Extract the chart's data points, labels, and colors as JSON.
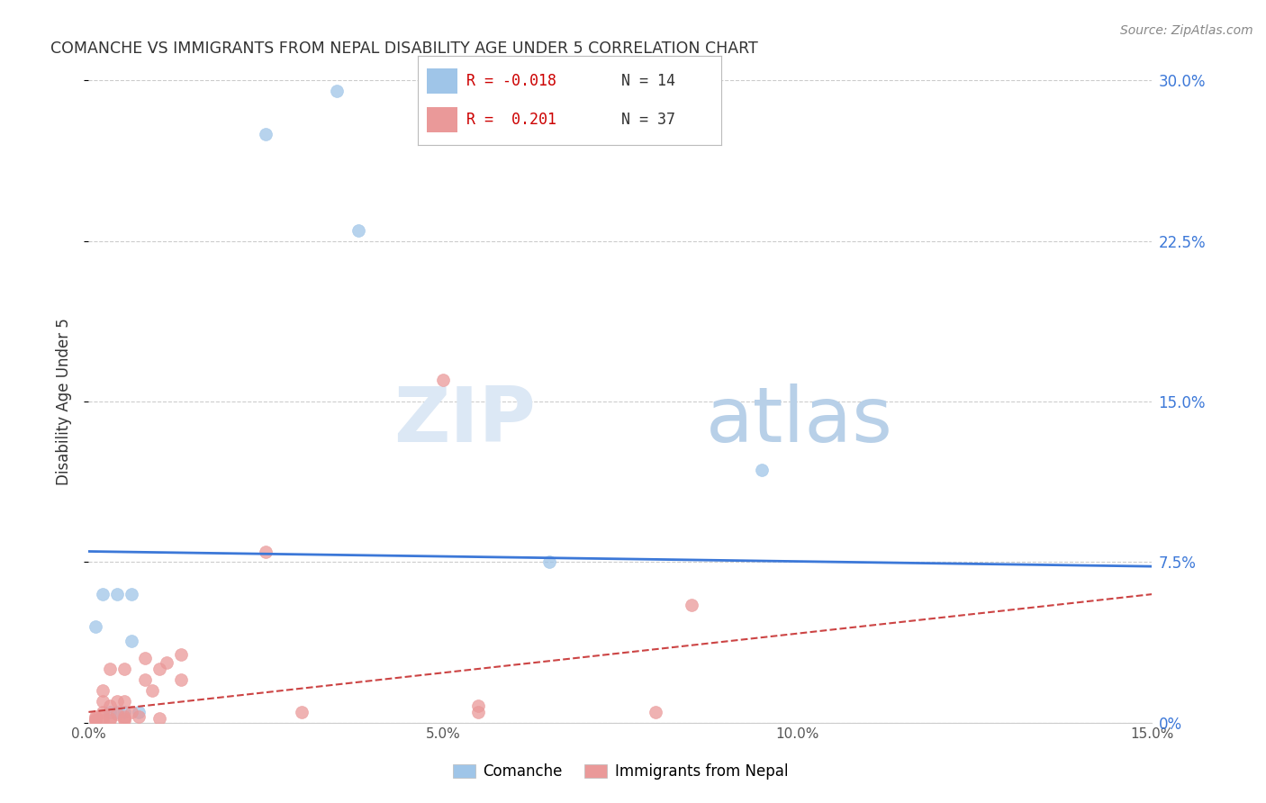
{
  "title": "COMANCHE VS IMMIGRANTS FROM NEPAL DISABILITY AGE UNDER 5 CORRELATION CHART",
  "source": "Source: ZipAtlas.com",
  "ylabel": "Disability Age Under 5",
  "xlim": [
    0.0,
    0.15
  ],
  "ylim": [
    0.0,
    0.3
  ],
  "xticks": [
    0.0,
    0.025,
    0.05,
    0.075,
    0.1,
    0.125,
    0.15
  ],
  "xtick_labels": [
    "0.0%",
    "",
    "5.0%",
    "",
    "10.0%",
    "",
    "15.0%"
  ],
  "yticks_right": [
    0.0,
    0.075,
    0.15,
    0.225,
    0.3
  ],
  "ytick_right_labels": [
    "0%",
    "7.5%",
    "15.0%",
    "22.5%",
    "30.0%"
  ],
  "blue_color": "#9fc5e8",
  "pink_color": "#ea9999",
  "blue_line_color": "#3c78d8",
  "pink_line_color": "#cc4444",
  "watermark_zip": "ZIP",
  "watermark_atlas": "atlas",
  "comanche_x": [
    0.001,
    0.002,
    0.003,
    0.004,
    0.004,
    0.005,
    0.006,
    0.006,
    0.007,
    0.025,
    0.035,
    0.038,
    0.065,
    0.095
  ],
  "comanche_y": [
    0.045,
    0.06,
    0.005,
    0.005,
    0.06,
    0.005,
    0.038,
    0.06,
    0.005,
    0.275,
    0.295,
    0.23,
    0.075,
    0.118
  ],
  "nepal_x": [
    0.001,
    0.001,
    0.001,
    0.001,
    0.002,
    0.002,
    0.002,
    0.002,
    0.002,
    0.003,
    0.003,
    0.003,
    0.003,
    0.004,
    0.004,
    0.005,
    0.005,
    0.005,
    0.005,
    0.005,
    0.006,
    0.007,
    0.008,
    0.008,
    0.009,
    0.01,
    0.01,
    0.011,
    0.013,
    0.013,
    0.025,
    0.03,
    0.05,
    0.055,
    0.055,
    0.08,
    0.085
  ],
  "nepal_y": [
    0.001,
    0.001,
    0.002,
    0.003,
    0.001,
    0.003,
    0.005,
    0.01,
    0.015,
    0.001,
    0.002,
    0.008,
    0.025,
    0.004,
    0.01,
    0.001,
    0.002,
    0.003,
    0.01,
    0.025,
    0.005,
    0.003,
    0.02,
    0.03,
    0.015,
    0.002,
    0.025,
    0.028,
    0.02,
    0.032,
    0.08,
    0.005,
    0.16,
    0.008,
    0.005,
    0.005,
    0.055
  ],
  "blue_trend_x": [
    0.0,
    0.15
  ],
  "blue_trend_y": [
    0.08,
    0.073
  ],
  "pink_trend_x": [
    0.0,
    0.15
  ],
  "pink_trend_y": [
    0.005,
    0.06
  ]
}
